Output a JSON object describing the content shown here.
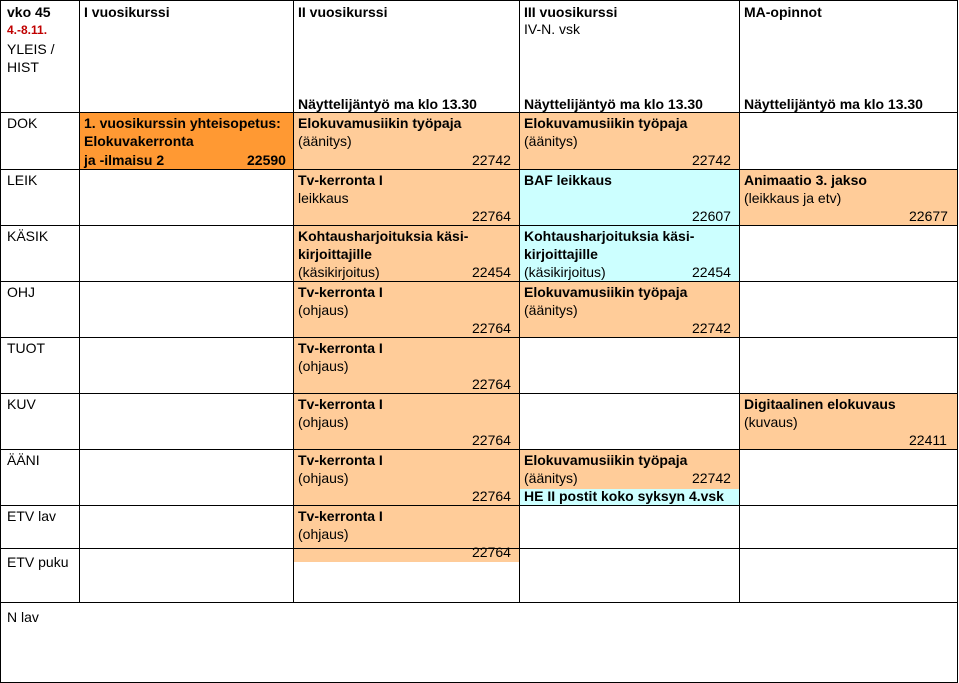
{
  "header": {
    "week_label": "vko 45",
    "week_dates": "4.-8.11.",
    "year1": "I vuosikurssi",
    "year2": "II vuosikurssi",
    "year3": "III vuosikurssi",
    "year3_sub": "IV-N. vsk",
    "ma": "MA-opinnot"
  },
  "rows": {
    "yleis": "YLEIS /",
    "hist": "HIST",
    "dok": "DOK",
    "leik": "LEIK",
    "kasik": "KÄSIK",
    "ohj": "OHJ",
    "tuot": "TUOT",
    "kuv": "KUV",
    "aani": "ÄÄNI",
    "etvlav": "ETV lav",
    "etvpuku": "ETV puku",
    "nlav": "N lav"
  },
  "nayttely": {
    "y2": "Näyttelijäntyö ma klo 13.30",
    "y3": "Näyttelijäntyö ma klo 13.30",
    "ma": "Näyttelijäntyö ma klo 13.30"
  },
  "dok": {
    "y1_line1": "1. vuosikurssin yhteisopetus:",
    "y1_line2": "Elokuvakerronta",
    "y1_line3": "ja -ilmaisu 2",
    "y1_code": "22590",
    "y2_line1": "Elokuvamusiikin työpaja",
    "y2_line2": "(äänitys)",
    "y2_code": "22742",
    "y3_line1": "Elokuvamusiikin työpaja",
    "y3_line2": "(äänitys)",
    "y3_code": "22742"
  },
  "leik": {
    "y2_line1": "Tv-kerronta I",
    "y2_line2": "leikkaus",
    "y2_code": "22764",
    "y3_line1": "BAF leikkaus",
    "y3_code": "22607",
    "ma_line1": "Animaatio 3. jakso",
    "ma_line2": "(leikkaus ja etv)",
    "ma_code": "22677"
  },
  "kasik": {
    "y2_line1": "Kohtausharjoituksia käsi-",
    "y2_line2": "kirjoittajille",
    "y2_line3": "(käsikirjoitus)",
    "y2_code": "22454",
    "y3_line1": "Kohtausharjoituksia käsi-",
    "y3_line2": "kirjoittajille",
    "y3_line3": "(käsikirjoitus)",
    "y3_code": "22454"
  },
  "ohj": {
    "y2_line1": "Tv-kerronta I",
    "y2_line2": "(ohjaus)",
    "y2_code": "22764",
    "y3_line1": "Elokuvamusiikin työpaja",
    "y3_line2": "(äänitys)",
    "y3_code": "22742"
  },
  "tuot": {
    "y2_line1": "Tv-kerronta I",
    "y2_line2": "(ohjaus)",
    "y2_code": "22764"
  },
  "kuv": {
    "y2_line1": "Tv-kerronta I",
    "y2_line2": "(ohjaus)",
    "y2_code": "22764",
    "ma_line1": "Digitaalinen elokuvaus",
    "ma_line2": "(kuvaus)",
    "ma_code": "22411"
  },
  "aani": {
    "y2_line1": "Tv-kerronta I",
    "y2_line2": "(ohjaus)",
    "y2_code": "22764",
    "y3_line1": "Elokuvamusiikin työpaja",
    "y3_line2": "(äänitys)",
    "y3_code": "22742",
    "y3_note": "HE II postit koko syksyn 4.vsk"
  },
  "etvlav": {
    "y2_line1": "Tv-kerronta I",
    "y2_line2": "(ohjaus)",
    "y2_code": "22764"
  },
  "colors": {
    "orange": "#ff9933",
    "peach": "#ffcc99",
    "cyan": "#ccffff"
  }
}
